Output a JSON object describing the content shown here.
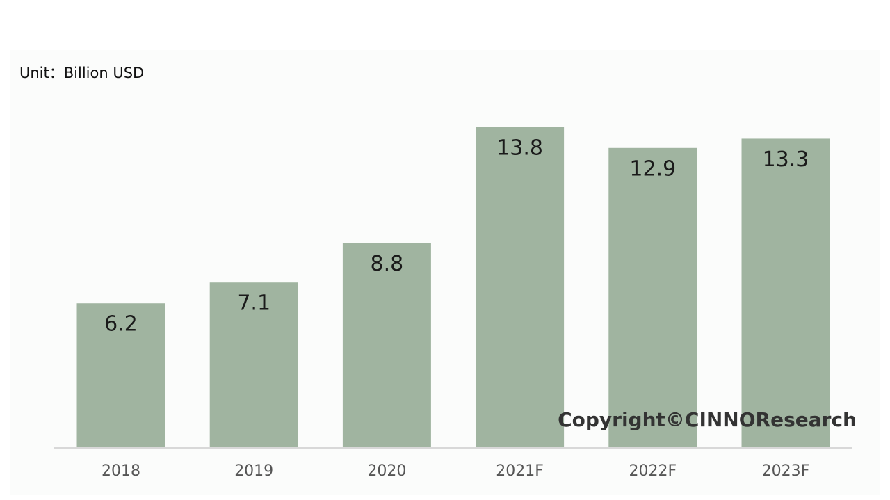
{
  "chart_data": {
    "type": "bar",
    "subtitle": "Unit：Billion USD",
    "categories": [
      "2018",
      "2019",
      "2020",
      "2021F",
      "2022F",
      "2023F"
    ],
    "values": [
      6.2,
      7.1,
      8.8,
      13.8,
      12.9,
      13.3
    ],
    "color": "#a0b4a0",
    "annotation": "Copyright©CINNOResearch"
  }
}
